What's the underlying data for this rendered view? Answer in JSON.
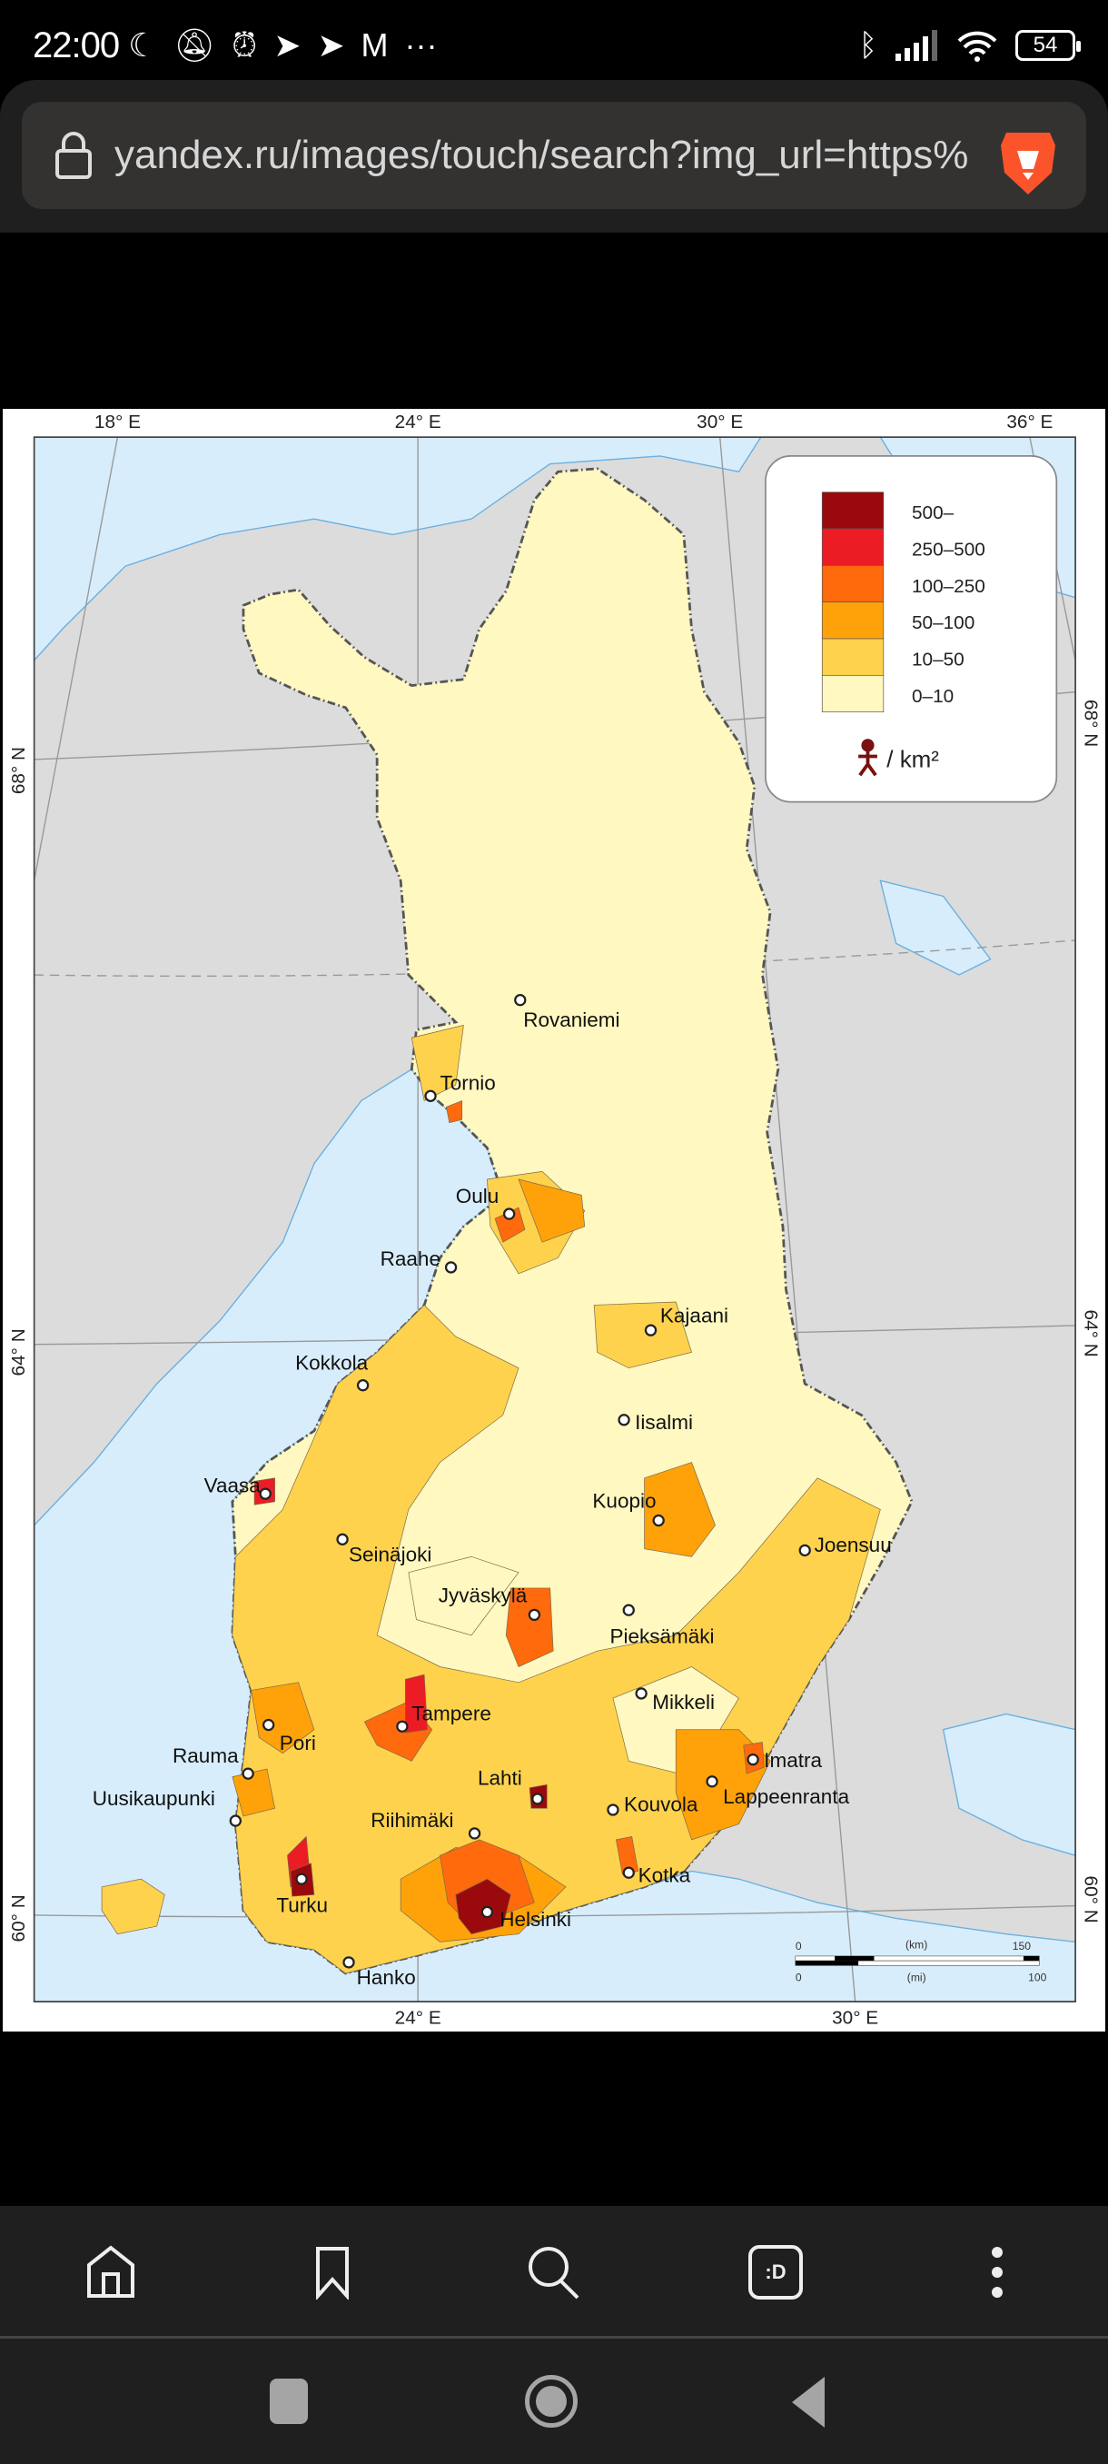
{
  "status_bar": {
    "time": "22:00",
    "battery": "54",
    "icons": [
      "moon-icon",
      "bell-off-icon",
      "alarm-icon",
      "telegram-icon",
      "telegram-icon",
      "gmail-icon",
      "more-icon"
    ],
    "right_icons": [
      "bluetooth-icon",
      "signal-icon",
      "wifi-icon",
      "battery-icon"
    ],
    "more": "···"
  },
  "browser": {
    "url": "yandex.ru/images/touch/search?img_url=https%",
    "brand_icon": "brave-lion-icon",
    "accent": "#fb542b"
  },
  "map": {
    "axes": {
      "top": [
        "18° E",
        "24° E",
        "30° E",
        "36° E"
      ],
      "bottom": [
        "24° E",
        "30° E"
      ],
      "left": [
        "68° N",
        "64° N",
        "60° N"
      ],
      "right": [
        "68° N",
        "64° N",
        "60° N"
      ]
    },
    "legend": {
      "classes": [
        {
          "label": "500–",
          "color": "#9a0a0d"
        },
        {
          "label": "250–500",
          "color": "#ec1c24"
        },
        {
          "label": "100–250",
          "color": "#ff6a0d"
        },
        {
          "label": "50–100",
          "color": "#ffa20a"
        },
        {
          "label": "10–50",
          "color": "#ffd24d"
        },
        {
          "label": "0–10",
          "color": "#fff8c0"
        }
      ],
      "unit": "/ km²",
      "unit_icon": "person-icon"
    },
    "cities": [
      "Rovaniemi",
      "Tornio",
      "Oulu",
      "Raahe",
      "Kajaani",
      "Kokkola",
      "Iisalmi",
      "Vaasa",
      "Kuopio",
      "Joensuu",
      "Seinäjoki",
      "Jyväskylä",
      "Pieksämäki",
      "Mikkeli",
      "Tampere",
      "Pori",
      "Rauma",
      "Imatra",
      "Lappeenranta",
      "Lahti",
      "Kouvola",
      "Uusikaupunki",
      "Riihimäki",
      "Kotka",
      "Turku",
      "Helsinki",
      "Hanko"
    ],
    "scale": {
      "km_label": "(km)",
      "mi_label": "(mi)",
      "km_zero": "0",
      "km_max": "150",
      "mi_zero": "0",
      "mi_max": "100"
    },
    "colors": {
      "sea": "#d8edfb",
      "neighbor_land": "#dcdcdc"
    }
  },
  "bottom_nav": {
    "items": [
      "home-icon",
      "bookmark-icon",
      "search-icon",
      "tabs-icon",
      "menu-icon"
    ],
    "tabs_label": ":D"
  },
  "system_nav": {
    "items": [
      "recents-button",
      "home-button",
      "back-button"
    ]
  }
}
